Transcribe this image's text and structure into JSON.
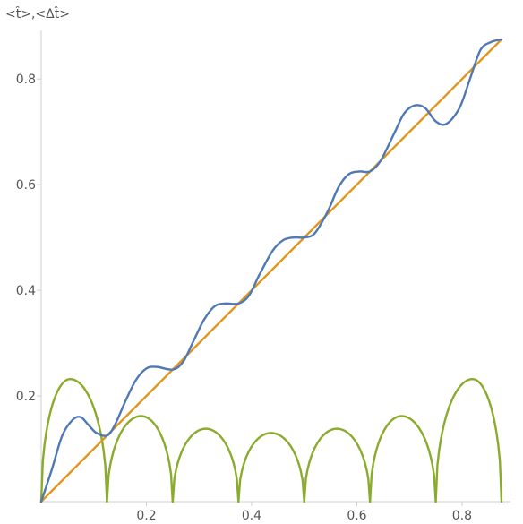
{
  "chart_data": {
    "type": "line",
    "title": "",
    "xlabel": "",
    "ylabel": "<t̂>,<Δt̂>",
    "xlim": [
      0,
      0.875
    ],
    "ylim": [
      0,
      0.875
    ],
    "x_ticks": [
      "0.2",
      "0.4",
      "0.6",
      "0.8"
    ],
    "y_ticks": [
      "0.2",
      "0.4",
      "0.6",
      "0.8"
    ],
    "grid": false,
    "legend": "none",
    "series": [
      {
        "color": "#5079b4",
        "x": [
          0.0,
          0.02,
          0.04,
          0.06,
          0.075,
          0.09,
          0.105,
          0.125,
          0.14,
          0.16,
          0.18,
          0.2,
          0.22,
          0.25,
          0.27,
          0.29,
          0.31,
          0.33,
          0.35,
          0.375,
          0.395,
          0.415,
          0.44,
          0.46,
          0.48,
          0.5,
          0.52,
          0.545,
          0.565,
          0.585,
          0.605,
          0.625,
          0.645,
          0.67,
          0.69,
          0.71,
          0.73,
          0.75,
          0.77,
          0.795,
          0.815,
          0.835,
          0.855,
          0.875
        ],
        "y": [
          0.0,
          0.06,
          0.125,
          0.155,
          0.16,
          0.145,
          0.13,
          0.125,
          0.145,
          0.19,
          0.23,
          0.252,
          0.255,
          0.25,
          0.265,
          0.305,
          0.345,
          0.37,
          0.375,
          0.375,
          0.39,
          0.43,
          0.475,
          0.495,
          0.5,
          0.5,
          0.508,
          0.55,
          0.595,
          0.62,
          0.625,
          0.625,
          0.645,
          0.695,
          0.735,
          0.75,
          0.745,
          0.72,
          0.715,
          0.745,
          0.8,
          0.855,
          0.87,
          0.875
        ]
      },
      {
        "color": "#e0961c",
        "x": [
          0.0,
          0.875
        ],
        "y": [
          0.0,
          0.875
        ]
      },
      {
        "color": "#8aab2c",
        "arches": [
          {
            "start": 0.0,
            "end": 0.125,
            "peak_x": 0.055,
            "peak_y": 0.232
          },
          {
            "start": 0.125,
            "end": 0.25,
            "peak_x": 0.19,
            "peak_y": 0.162
          },
          {
            "start": 0.25,
            "end": 0.375,
            "peak_x": 0.313,
            "peak_y": 0.138
          },
          {
            "start": 0.375,
            "end": 0.5,
            "peak_x": 0.437,
            "peak_y": 0.13
          },
          {
            "start": 0.5,
            "end": 0.625,
            "peak_x": 0.562,
            "peak_y": 0.138
          },
          {
            "start": 0.625,
            "end": 0.75,
            "peak_x": 0.685,
            "peak_y": 0.162
          },
          {
            "start": 0.75,
            "end": 0.875,
            "peak_x": 0.82,
            "peak_y": 0.232
          }
        ]
      }
    ]
  }
}
